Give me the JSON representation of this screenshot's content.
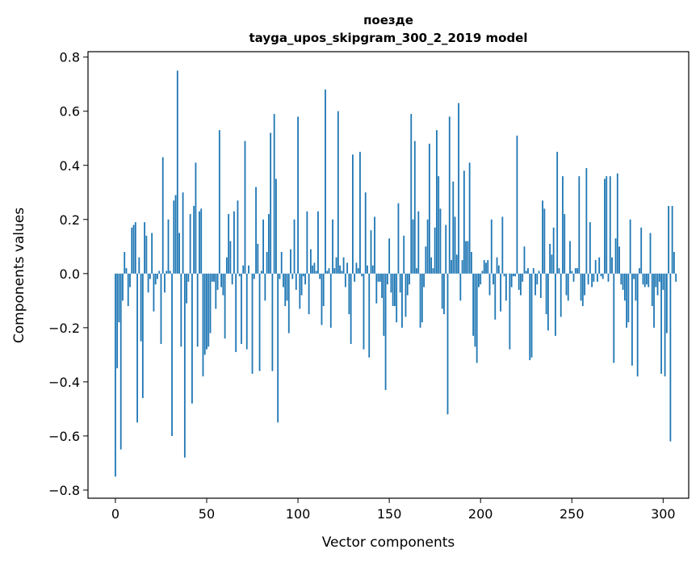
{
  "chart_data": {
    "type": "bar",
    "title_line1": "поезде",
    "title_line2": "tayga_upos_skipgram_300_2_2019 model",
    "xlabel": "Vector components",
    "ylabel": "Components values",
    "xlim": [
      -15,
      314
    ],
    "ylim": [
      -0.83,
      0.82
    ],
    "xticks": [
      0,
      50,
      100,
      150,
      200,
      250,
      300
    ],
    "xtick_labels": [
      "0",
      "50",
      "100",
      "150",
      "200",
      "250",
      "300"
    ],
    "yticks": [
      -0.8,
      -0.6,
      -0.4,
      -0.2,
      0.0,
      0.2,
      0.4,
      0.6,
      0.8
    ],
    "ytick_labels": [
      "−0.8",
      "−0.6",
      "−0.4",
      "−0.2",
      "0.0",
      "0.2",
      "0.4",
      "0.6",
      "0.8"
    ],
    "bar_color": "#1f77b4",
    "values": [
      -0.75,
      -0.35,
      -0.18,
      -0.65,
      -0.1,
      0.08,
      0.02,
      -0.12,
      -0.05,
      0.17,
      0.18,
      0.19,
      -0.55,
      0.06,
      -0.25,
      -0.46,
      0.19,
      0.14,
      -0.07,
      -0.02,
      0.15,
      -0.14,
      -0.04,
      -0.02,
      0.01,
      -0.26,
      0.43,
      -0.07,
      0.01,
      0.2,
      0.01,
      -0.6,
      0.27,
      0.29,
      0.75,
      0.15,
      -0.27,
      0.3,
      -0.68,
      -0.11,
      -0.03,
      0.22,
      -0.48,
      0.25,
      0.41,
      -0.27,
      0.23,
      0.24,
      -0.38,
      -0.3,
      -0.28,
      -0.27,
      -0.22,
      -0.03,
      -0.03,
      -0.13,
      -0.06,
      0.53,
      -0.05,
      -0.08,
      -0.24,
      0.06,
      0.22,
      0.12,
      -0.04,
      0.23,
      -0.29,
      0.27,
      -0.01,
      -0.26,
      0.03,
      0.49,
      -0.28,
      0.03,
      0.0,
      -0.37,
      -0.02,
      0.32,
      0.11,
      -0.36,
      0.01,
      0.2,
      -0.1,
      0.08,
      0.22,
      0.52,
      -0.36,
      0.59,
      0.35,
      -0.55,
      -0.02,
      0.08,
      -0.05,
      -0.12,
      -0.1,
      -0.22,
      0.09,
      -0.02,
      0.2,
      -0.06,
      0.58,
      -0.13,
      -0.08,
      -0.01,
      -0.04,
      0.23,
      -0.15,
      0.09,
      0.03,
      0.04,
      0.01,
      0.23,
      -0.02,
      -0.19,
      -0.12,
      0.68,
      0.01,
      0.02,
      -0.2,
      0.2,
      0.02,
      0.06,
      0.6,
      0.03,
      0.01,
      0.06,
      -0.05,
      0.04,
      -0.15,
      -0.26,
      0.44,
      -0.03,
      0.04,
      0.02,
      0.45,
      -0.01,
      -0.28,
      0.3,
      0.03,
      -0.31,
      0.16,
      0.03,
      0.21,
      -0.11,
      -0.03,
      -0.03,
      -0.09,
      -0.23,
      -0.43,
      -0.04,
      0.13,
      -0.07,
      -0.12,
      -0.12,
      -0.18,
      0.26,
      -0.07,
      -0.2,
      0.14,
      -0.16,
      -0.08,
      -0.04,
      0.59,
      0.2,
      0.49,
      0.02,
      0.23,
      -0.2,
      -0.18,
      -0.05,
      0.1,
      0.2,
      0.48,
      0.06,
      0.02,
      0.17,
      0.53,
      0.36,
      0.24,
      -0.13,
      -0.15,
      0.18,
      -0.52,
      0.58,
      0.05,
      0.34,
      0.21,
      0.07,
      0.63,
      -0.1,
      0.05,
      0.38,
      0.12,
      0.12,
      0.41,
      0.08,
      -0.23,
      -0.27,
      -0.33,
      -0.05,
      -0.04,
      0.01,
      0.05,
      0.04,
      0.05,
      -0.08,
      0.2,
      -0.04,
      -0.17,
      0.06,
      0.03,
      -0.14,
      0.21,
      -0.01,
      -0.1,
      0.0,
      -0.28,
      -0.05,
      -0.01,
      -0.01,
      0.51,
      -0.06,
      -0.08,
      -0.03,
      0.1,
      0.01,
      0.02,
      -0.32,
      -0.31,
      0.02,
      -0.08,
      -0.04,
      0.01,
      -0.09,
      0.27,
      0.24,
      -0.15,
      -0.21,
      0.11,
      0.07,
      0.17,
      -0.23,
      0.45,
      0.02,
      -0.16,
      0.36,
      0.22,
      -0.08,
      -0.1,
      0.12,
      0.01,
      -0.03,
      0.02,
      0.02,
      0.36,
      -0.1,
      -0.12,
      -0.08,
      0.39,
      -0.04,
      0.19,
      -0.05,
      -0.03,
      0.05,
      -0.03,
      0.06,
      -0.01,
      -0.02,
      0.35,
      0.36,
      -0.03,
      0.36,
      0.06,
      -0.33,
      0.13,
      0.37,
      0.1,
      -0.04,
      -0.06,
      -0.1,
      -0.2,
      -0.18,
      0.2,
      -0.34,
      -0.02,
      -0.1,
      -0.38,
      0.02,
      0.17,
      -0.04,
      -0.05,
      -0.04,
      -0.05,
      0.15,
      -0.12,
      -0.2,
      -0.05,
      -0.08,
      -0.03,
      -0.37,
      -0.06,
      -0.38,
      -0.22,
      0.25,
      -0.62,
      0.25,
      0.08,
      -0.03
    ]
  }
}
